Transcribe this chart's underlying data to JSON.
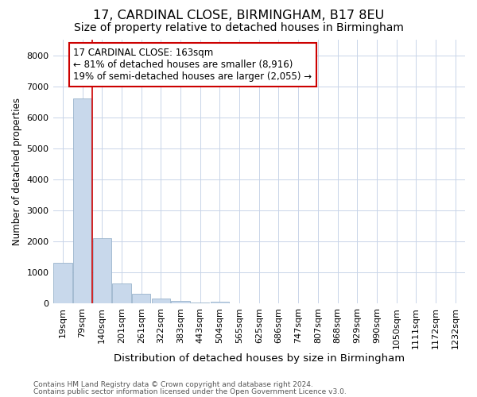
{
  "title1": "17, CARDINAL CLOSE, BIRMINGHAM, B17 8EU",
  "title2": "Size of property relative to detached houses in Birmingham",
  "xlabel": "Distribution of detached houses by size in Birmingham",
  "ylabel": "Number of detached properties",
  "categories": [
    "19sqm",
    "79sqm",
    "140sqm",
    "201sqm",
    "261sqm",
    "322sqm",
    "383sqm",
    "443sqm",
    "504sqm",
    "565sqm",
    "625sqm",
    "686sqm",
    "747sqm",
    "807sqm",
    "868sqm",
    "929sqm",
    "990sqm",
    "1050sqm",
    "1111sqm",
    "1172sqm",
    "1232sqm"
  ],
  "values": [
    1300,
    6600,
    2100,
    650,
    300,
    150,
    70,
    20,
    50,
    5,
    5,
    5,
    0,
    0,
    0,
    0,
    0,
    0,
    0,
    0,
    0
  ],
  "bar_color": "#c8d8eb",
  "bar_edge_color": "#9ab4cc",
  "vline_color": "#cc0000",
  "vline_pos": 1.5,
  "annotation_text": "17 CARDINAL CLOSE: 163sqm\n← 81% of detached houses are smaller (8,916)\n19% of semi-detached houses are larger (2,055) →",
  "annotation_box_color": "#ffffff",
  "annotation_box_edge": "#cc0000",
  "ylim": [
    0,
    8500
  ],
  "yticks": [
    0,
    1000,
    2000,
    3000,
    4000,
    5000,
    6000,
    7000,
    8000
  ],
  "footer1": "Contains HM Land Registry data © Crown copyright and database right 2024.",
  "footer2": "Contains public sector information licensed under the Open Government Licence v3.0.",
  "bg_color": "#ffffff",
  "grid_color": "#c8d4e8",
  "title1_fontsize": 11.5,
  "title2_fontsize": 10,
  "xlabel_fontsize": 9.5,
  "ylabel_fontsize": 8.5,
  "tick_fontsize": 8,
  "annotation_fontsize": 8.5,
  "footer_fontsize": 6.5
}
